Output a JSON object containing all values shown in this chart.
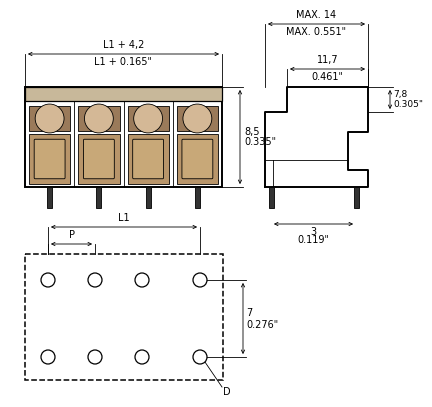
{
  "bg_color": "#ffffff",
  "line_color": "#000000",
  "fig_w": 4.0,
  "fig_h": 3.78,
  "labels": {
    "max14": "MAX. 14",
    "max0551": "MAX. 0.551\"",
    "l1_42": "L1 + 4,2",
    "l1_0165": "L1 + 0.165\"",
    "l1": "L1",
    "p": "P",
    "d": "D",
    "dim_11_7": "11,7",
    "dim_0461": "0.461\"",
    "dim_8_5": "8,5",
    "dim_0335": "0.335\"",
    "dim_7_8": "7,8",
    "dim_0305": "0.305\"",
    "dim_3": "3",
    "dim_0119": "0.119\"",
    "dim_7": "7",
    "dim_0276": "0.276\""
  }
}
